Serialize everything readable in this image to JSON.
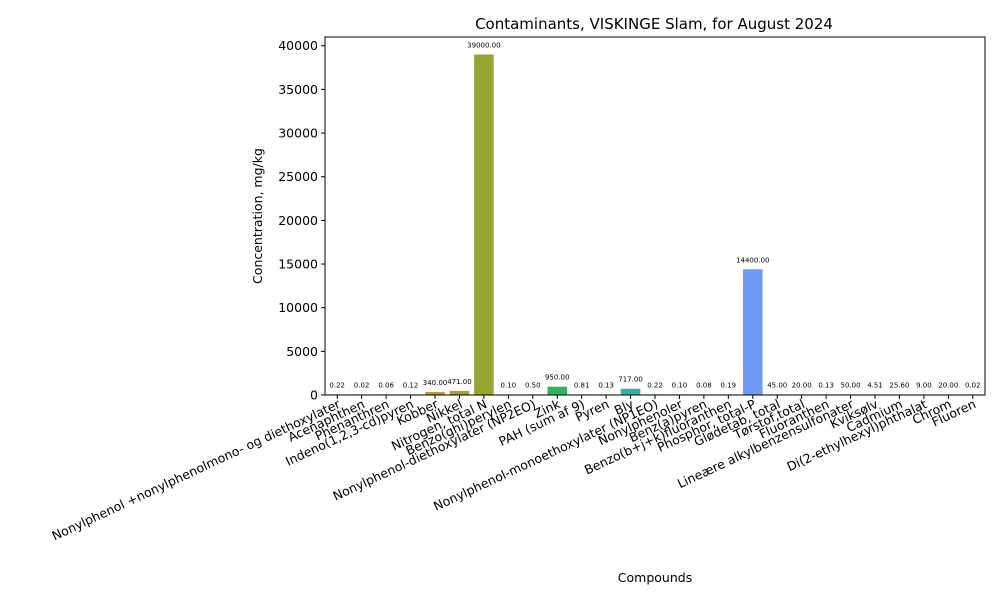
{
  "chart_data": {
    "type": "bar",
    "title": "Contaminants, VISKINGE Slam, for August 2024",
    "xlabel": "Compounds",
    "ylabel": "Concentration, mg/kg",
    "ylim": [
      0,
      41000
    ],
    "yticks": [
      0,
      5000,
      10000,
      15000,
      20000,
      25000,
      30000,
      35000,
      40000
    ],
    "grid": false,
    "legend": "none",
    "categories": [
      "Nonylphenol +nonylphenolmono- og diethoxylater",
      "Acenaphthen",
      "Phenanthren",
      "Indeno(1,2,3-cd)pyren",
      "Kobber",
      "Nikkel",
      "Nitrogen, total N",
      "Benzo(ghi)perylen",
      "Nonylphenol-diethoxylater (NP2EO)",
      "Zink",
      "PAH (sum af 9)",
      "Pyren",
      "Bly",
      "Nonylphenol-monoethoxylater (NP1EO)",
      "Nonylphenoler",
      "Benz(a)pyren",
      "Benzo(b+j+k)fluoranthen",
      "Phosphor, total-P",
      "Glødetab, total",
      "Tørstof,total",
      "Fluoranthen",
      "Lineære alkylbenzensulfonater",
      "Kviksølv",
      "Cadmium",
      "Di(2-ethylhexyl)phthalat",
      "Chrom",
      "Fluoren"
    ],
    "values": [
      0.22,
      0.02,
      0.06,
      0.12,
      340.0,
      471.0,
      39000.0,
      0.1,
      0.5,
      950.0,
      0.81,
      0.13,
      717.0,
      0.22,
      0.1,
      0.08,
      0.19,
      14400.0,
      45.0,
      20.0,
      0.13,
      50.0,
      4.51,
      25.6,
      9.0,
      20.0,
      0.02
    ],
    "data_labels": [
      "0.22",
      "0.02",
      "0.06",
      "0.12",
      "340.00",
      "471.00",
      "39000.00",
      "0.10",
      "0.50",
      "950.00",
      "0.81",
      "0.13",
      "717.00",
      "0.22",
      "0.10",
      "0.08",
      "0.19",
      "14400.00",
      "45.00",
      "20.00",
      "0.13",
      "50.00",
      "4.51",
      "25.60",
      "9.00",
      "20.00",
      "0.02"
    ],
    "colors": [
      "#f77189",
      "#f7754f",
      "#e68332",
      "#d08f32",
      "#bb9832",
      "#ad9c31",
      "#97a431",
      "#7daa31",
      "#50b131",
      "#32b25e",
      "#34af89",
      "#35ad9c",
      "#36abab",
      "#37a9b7",
      "#38a7c3",
      "#3aa4d2",
      "#4aa0e1",
      "#6e9af4",
      "#928ef4",
      "#ad82f4",
      "#c874f4",
      "#e265f4",
      "#f461dd",
      "#f56bc4",
      "#f673ad",
      "#f77496",
      "#f77189"
    ]
  }
}
